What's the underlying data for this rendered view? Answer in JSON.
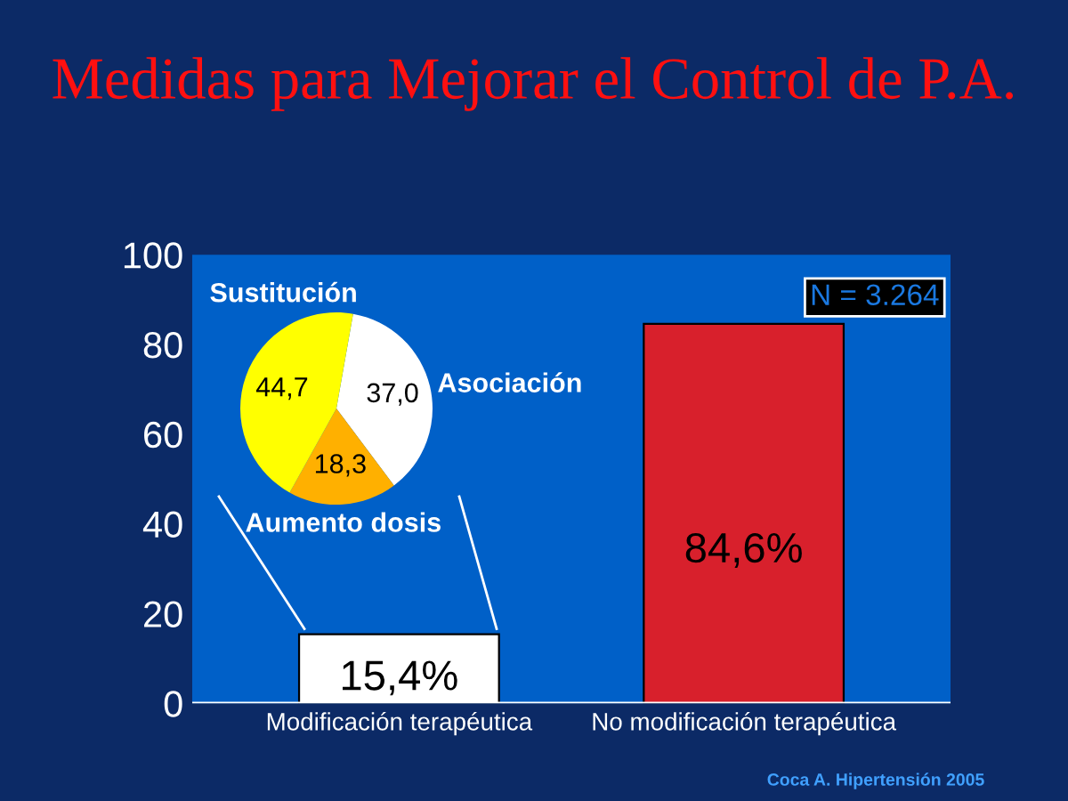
{
  "chart_data": [
    {
      "type": "bar",
      "title": "Medidas para Mejorar el Control de P.A.",
      "categories": [
        "Modificación terapéutica",
        "No modificación terapéutica"
      ],
      "values": [
        15.4,
        84.6
      ],
      "colors": [
        "#ffffff",
        "#d8202c"
      ],
      "value_labels": [
        "15,4%",
        "84,6%"
      ],
      "ylim": [
        0,
        100
      ],
      "yticks": [
        0,
        20,
        40,
        60,
        80,
        100
      ],
      "grid": false,
      "legend": false,
      "annotations": [
        "N = 3.264",
        "Coca A. Hipertensión 2005"
      ]
    },
    {
      "type": "pie",
      "categories": [
        "Asociación",
        "Aumento dosis",
        "Sustitución"
      ],
      "values": [
        37.0,
        18.3,
        44.7
      ],
      "colors": [
        "#ffffff",
        "#ffb000",
        "#ffff00"
      ],
      "value_labels": [
        "37,0",
        "18,3",
        "44,7"
      ],
      "legend": false
    }
  ]
}
